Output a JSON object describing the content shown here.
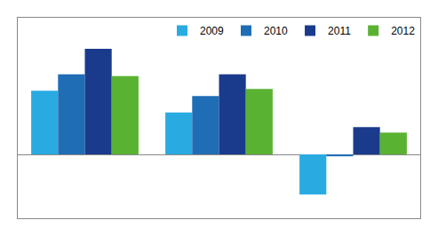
{
  "chart_data": {
    "type": "bar",
    "categories": [
      null,
      null,
      null
    ],
    "series": [
      {
        "name": "2009",
        "color": "#29ABE2",
        "values": [
          3.5,
          2.3,
          -2.2
        ]
      },
      {
        "name": "2010",
        "color": "#1F6DB5",
        "values": [
          4.4,
          3.2,
          -0.1
        ]
      },
      {
        "name": "2011",
        "color": "#1A3A8C",
        "values": [
          5.8,
          4.4,
          1.5
        ]
      },
      {
        "name": "2012",
        "color": "#5AB232",
        "values": [
          4.3,
          3.6,
          1.2
        ]
      }
    ],
    "ylim": [
      -3.5,
      7.5
    ],
    "yticks": [],
    "grid": false,
    "legend": "upper right",
    "tick_labels": false
  }
}
